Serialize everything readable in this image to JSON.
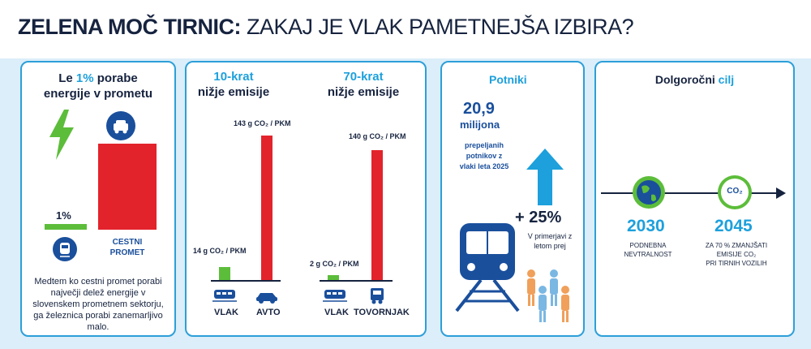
{
  "title": {
    "bold": "ZELENA MOČ TIRNIC:",
    "light": " ZAKAJ JE VLAK PAMETNEJŠA IZBIRA?"
  },
  "card1": {
    "head_pre": "Le ",
    "head_pct": "1%",
    "head_post": " porabe",
    "head_line2": "energije v prometu",
    "rail_value": "1%",
    "road_label_1": "CESTNI",
    "road_label_2": "PROMET",
    "body_1": "Medtem ko cestni promet porabi",
    "body_2": "največji delež energije v",
    "body_3": "slovenskem prometnem sektorju,",
    "body_4": "ga železnica porabi zanemarljivo",
    "body_5": "malo."
  },
  "card2": {
    "a_head_1": "10-krat",
    "a_head_2": "nižje emisije",
    "a_big": "143 g CO₂ / PKM",
    "a_small": "14 g CO₂ / PKM",
    "a_rail": "VLAK",
    "a_road": "AVTO",
    "b_head_1": "70-krat",
    "b_head_2": "nižje emisije",
    "b_big": "140 g CO₂ / PKM",
    "b_small": "2 g CO₂ / PKM",
    "b_rail": "VLAK",
    "b_road": "TOVORNJAK"
  },
  "chart_data": [
    {
      "type": "bar",
      "categories": [
        "",
        "CESTNI PROMET"
      ],
      "values": [
        1,
        99
      ]
    },
    {
      "type": "bar",
      "categories": [
        "VLAK",
        "AVTO"
      ],
      "values": [
        14,
        143
      ],
      "unit": "g CO₂ / PKM"
    },
    {
      "type": "bar",
      "categories": [
        "VLAK",
        "TOVORNJAK"
      ],
      "values": [
        2,
        140
      ],
      "unit": "g CO₂ / PKM"
    }
  ],
  "card3": {
    "head": "Potniki",
    "big_num": "20,9",
    "big_unit": "milijona",
    "desc_1": "prepeljanih",
    "desc_2": "potnikov z",
    "desc_3": "vlaki leta 2025",
    "growth": "+ 25%",
    "growth_1": "V primerjavi z",
    "growth_2": "letom prej"
  },
  "card4": {
    "head_pre": "Dolgoročni ",
    "head_accent": "cilj",
    "co2": "CO₂",
    "y1": "2030",
    "y1_1": "PODNEBNA",
    "y1_2": "NEVTRALNOST",
    "y2": "2045",
    "y2_1": "ZA 70 % ZMANJŠATI",
    "y2_2": "EMISIJE CO₂",
    "y2_3": "PRI TIRNIH VOZILIH"
  },
  "colors": {
    "accent": "#1da0dc",
    "red": "#e3232b",
    "green": "#5cbd3a",
    "navy": "#1a4f9c",
    "tan": "#f0a05a"
  }
}
